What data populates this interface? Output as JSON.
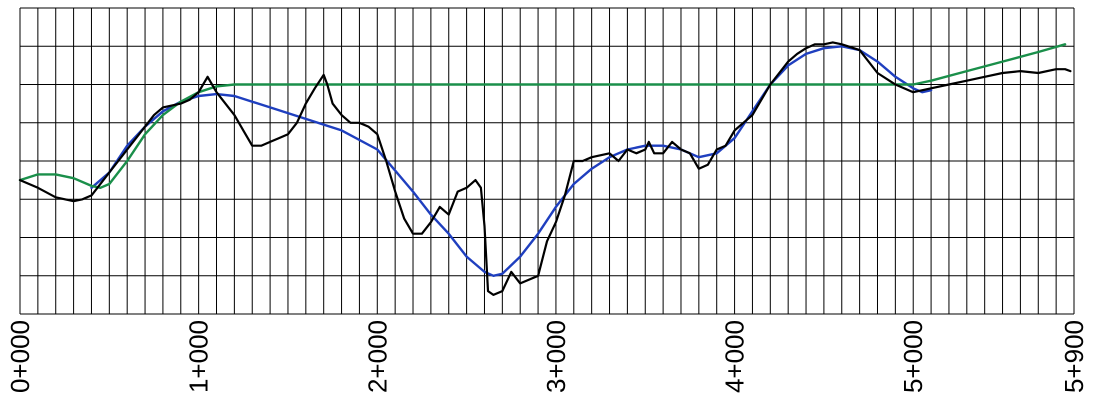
{
  "chart_data": {
    "type": "line",
    "x_unit": "m",
    "xlim": [
      0,
      5900
    ],
    "ylim": [
      0,
      8
    ],
    "grid": true,
    "tick_labels": [
      "0+000",
      "1+000",
      "2+000",
      "3+000",
      "4+000",
      "5+000",
      "5+900"
    ],
    "tick_values": [
      0,
      1000,
      2000,
      3000,
      4000,
      5000,
      5900
    ],
    "colors": {
      "ground": "#000000",
      "blue": "#1f3fbf",
      "green": "#1a8f4a",
      "grid": "#000000"
    },
    "series": [
      {
        "color": "#000000",
        "x": [
          0,
          100,
          200,
          300,
          350,
          400,
          500,
          600,
          700,
          750,
          800,
          900,
          950,
          1000,
          1050,
          1100,
          1150,
          1200,
          1250,
          1300,
          1350,
          1400,
          1450,
          1500,
          1550,
          1600,
          1650,
          1700,
          1720,
          1750,
          1800,
          1850,
          1900,
          1950,
          2000,
          2050,
          2100,
          2150,
          2200,
          2250,
          2300,
          2350,
          2400,
          2450,
          2500,
          2550,
          2580,
          2600,
          2620,
          2650,
          2700,
          2750,
          2800,
          2850,
          2900,
          2950,
          3000,
          3050,
          3100,
          3150,
          3200,
          3300,
          3350,
          3400,
          3450,
          3500,
          3520,
          3550,
          3600,
          3650,
          3700,
          3750,
          3800,
          3850,
          3900,
          3950,
          4000,
          4100,
          4200,
          4300,
          4350,
          4400,
          4450,
          4500,
          4550,
          4600,
          4700,
          4800,
          4900,
          5000,
          5100,
          5200,
          5300,
          5400,
          5500,
          5600,
          5700,
          5800,
          5850,
          5880
        ],
        "y": [
          3.5,
          3.3,
          3.05,
          2.95,
          3.0,
          3.1,
          3.7,
          4.3,
          4.9,
          5.2,
          5.4,
          5.5,
          5.6,
          5.8,
          6.2,
          5.8,
          5.5,
          5.2,
          4.8,
          4.4,
          4.4,
          4.5,
          4.6,
          4.7,
          5.0,
          5.5,
          5.9,
          6.25,
          6.0,
          5.5,
          5.2,
          5.0,
          5.0,
          4.9,
          4.7,
          4.0,
          3.2,
          2.5,
          2.1,
          2.1,
          2.4,
          2.8,
          2.6,
          3.2,
          3.3,
          3.5,
          3.3,
          2.3,
          0.6,
          0.5,
          0.6,
          1.1,
          0.8,
          0.9,
          1.0,
          1.9,
          2.4,
          3.1,
          4.0,
          4.0,
          4.1,
          4.2,
          4.0,
          4.3,
          4.2,
          4.3,
          4.5,
          4.2,
          4.2,
          4.5,
          4.3,
          4.2,
          3.8,
          3.9,
          4.3,
          4.4,
          4.8,
          5.2,
          6.0,
          6.6,
          6.8,
          6.95,
          7.05,
          7.05,
          7.1,
          7.05,
          6.9,
          6.3,
          6.0,
          5.8,
          5.9,
          6.0,
          6.1,
          6.2,
          6.3,
          6.35,
          6.3,
          6.4,
          6.4,
          6.35
        ]
      },
      {
        "color": "#1f3fbf",
        "x": [
          400,
          500,
          600,
          700,
          800,
          900,
          1000,
          1100,
          1200,
          1400,
          1600,
          1800,
          2000,
          2200,
          2300,
          2400,
          2500,
          2600,
          2650,
          2700,
          2800,
          2900,
          3000,
          3100,
          3200,
          3300,
          3400,
          3500,
          3600,
          3700,
          3800,
          3900,
          4000,
          4100,
          4200,
          4300,
          4400,
          4500,
          4600,
          4700,
          4800,
          4900,
          5000,
          5050,
          5100
        ],
        "y": [
          3.3,
          3.7,
          4.4,
          4.9,
          5.3,
          5.55,
          5.7,
          5.75,
          5.7,
          5.4,
          5.1,
          4.8,
          4.3,
          3.2,
          2.6,
          2.1,
          1.5,
          1.1,
          1.0,
          1.05,
          1.5,
          2.1,
          2.8,
          3.4,
          3.8,
          4.1,
          4.3,
          4.4,
          4.4,
          4.3,
          4.1,
          4.2,
          4.6,
          5.3,
          6.0,
          6.5,
          6.8,
          6.95,
          7.0,
          6.9,
          6.6,
          6.2,
          5.9,
          5.8,
          5.85
        ]
      },
      {
        "color": "#1a8f4a",
        "x": [
          0,
          100,
          200,
          300,
          400,
          450,
          500,
          600,
          700,
          800,
          900,
          1000,
          1100,
          1200,
          1300,
          1500,
          2000,
          2500,
          3000,
          3500,
          4000,
          4500,
          5000,
          5100,
          5300,
          5500,
          5700,
          5850
        ],
        "y": [
          3.5,
          3.65,
          3.65,
          3.55,
          3.35,
          3.3,
          3.4,
          4.0,
          4.7,
          5.2,
          5.55,
          5.8,
          5.95,
          6.0,
          6.0,
          6.0,
          6.0,
          6.0,
          6.0,
          6.0,
          6.0,
          6.0,
          6.0,
          6.1,
          6.35,
          6.6,
          6.85,
          7.05
        ]
      }
    ]
  }
}
